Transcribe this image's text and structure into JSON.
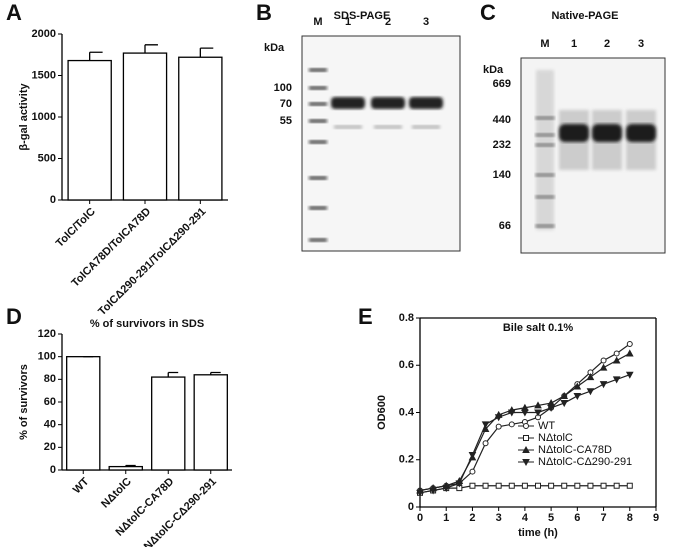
{
  "chart_data": [
    {
      "panel": "A",
      "type": "bar",
      "ylabel": "β-gal activity",
      "categories": [
        "TolC/TolC",
        "TolCA78D/TolCA78D",
        "TolCΔ290-291/TolCΔ290-291"
      ],
      "values": [
        1680,
        1770,
        1720
      ],
      "errors": [
        100,
        100,
        110
      ],
      "color": "#ffffff",
      "ylim": [
        0,
        2000
      ],
      "yticks": [
        0,
        500,
        1000,
        1500,
        2000
      ]
    },
    {
      "panel": "D",
      "type": "bar",
      "title": "% of survivors in SDS",
      "ylabel": "% of survivors",
      "categories": [
        "WT",
        "NΔtolC",
        "NΔtolC-CA78D",
        "NΔtolC-CΔ290-291"
      ],
      "values": [
        100,
        3,
        82,
        84
      ],
      "errors": [
        0,
        1,
        4,
        2
      ],
      "color": "#ffffff",
      "ylim": [
        0,
        120
      ],
      "yticks": [
        0,
        20,
        40,
        60,
        80,
        100,
        120
      ]
    },
    {
      "panel": "E",
      "type": "line",
      "title": "Bile salt 0.1%",
      "ylabel": "OD600",
      "xlabel": "time (h)",
      "x": [
        0,
        0.5,
        1,
        1.5,
        2,
        2.5,
        3,
        3.5,
        4,
        4.5,
        5,
        5.5,
        6,
        6.5,
        7,
        7.5,
        8
      ],
      "series": [
        {
          "name": "WT",
          "marker": "circle",
          "color": "#222222",
          "values": [
            0.07,
            0.08,
            0.09,
            0.1,
            0.15,
            0.27,
            0.34,
            0.35,
            0.36,
            0.38,
            0.42,
            0.47,
            0.52,
            0.57,
            0.62,
            0.65,
            0.69
          ]
        },
        {
          "name": "NΔtolC",
          "marker": "square",
          "color": "#222222",
          "values": [
            0.06,
            0.07,
            0.08,
            0.08,
            0.09,
            0.09,
            0.09,
            0.09,
            0.09,
            0.09,
            0.09,
            0.09,
            0.09,
            0.09,
            0.09,
            0.09,
            0.09
          ]
        },
        {
          "name": "NΔtolC-CA78D",
          "marker": "triangle",
          "color": "#222222",
          "values": [
            0.07,
            0.08,
            0.09,
            0.11,
            0.21,
            0.33,
            0.39,
            0.41,
            0.42,
            0.43,
            0.44,
            0.47,
            0.51,
            0.55,
            0.59,
            0.62,
            0.65
          ]
        },
        {
          "name": "NΔtolC-CΔ290-291",
          "marker": "triangle-down",
          "color": "#222222",
          "values": [
            0.06,
            0.07,
            0.08,
            0.1,
            0.22,
            0.35,
            0.38,
            0.4,
            0.4,
            0.4,
            0.42,
            0.44,
            0.47,
            0.49,
            0.52,
            0.54,
            0.56
          ]
        }
      ],
      "xlim": [
        0,
        9
      ],
      "xticks": [
        0,
        1,
        2,
        3,
        4,
        5,
        6,
        7,
        8,
        9
      ],
      "ylim": [
        0,
        0.8
      ],
      "yticks": [
        0,
        0.2,
        0.4,
        0.6,
        0.8
      ]
    }
  ],
  "gels": [
    {
      "panel": "B",
      "title": "SDS-PAGE",
      "unit": "kDa",
      "lanes": [
        "M",
        "1",
        "2",
        "3"
      ],
      "markers": [
        "100",
        "70",
        "55"
      ]
    },
    {
      "panel": "C",
      "title": "Native-PAGE",
      "unit": "kDa",
      "lanes": [
        "M",
        "1",
        "2",
        "3"
      ],
      "markers": [
        "669",
        "440",
        "232",
        "140",
        "66"
      ]
    }
  ]
}
